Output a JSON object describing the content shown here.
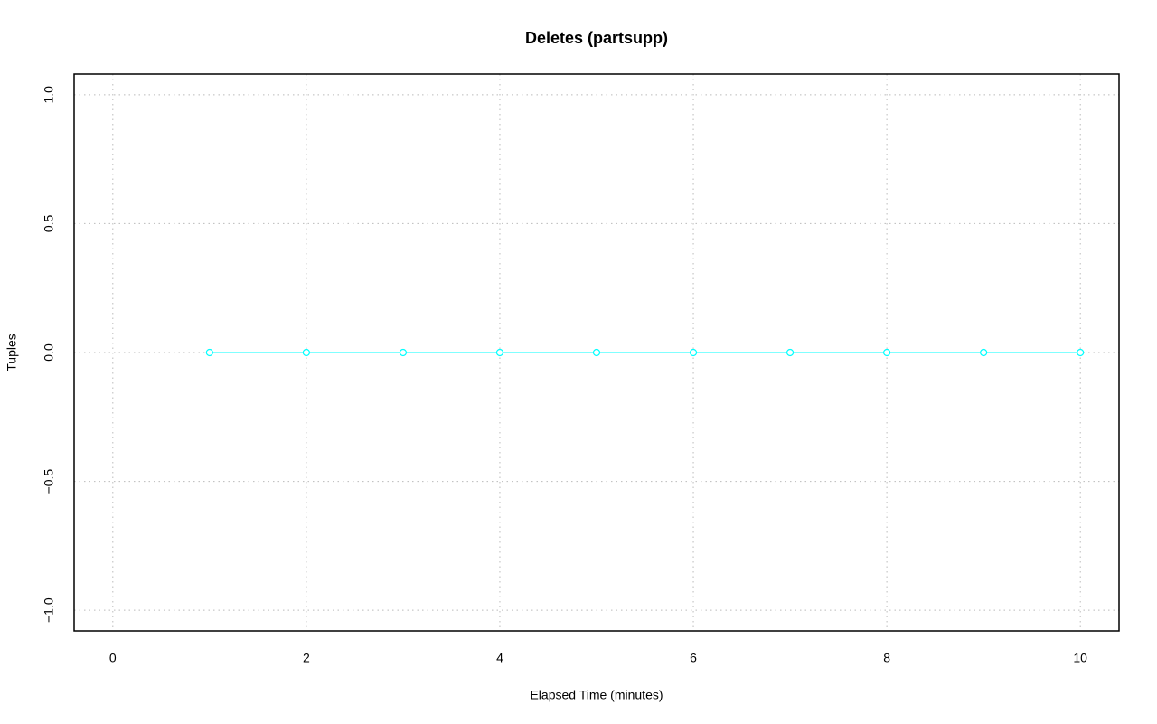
{
  "chart_data": {
    "type": "line",
    "title": "Deletes (partsupp)",
    "x_label": "Elapsed Time (minutes)",
    "y_label": "Tuples",
    "x": [
      1,
      2,
      3,
      4,
      5,
      6,
      7,
      8,
      9,
      10
    ],
    "series": [
      {
        "name": "partsupp",
        "color": "#00ffff",
        "values": [
          0,
          0,
          0,
          0,
          0,
          0,
          0,
          0,
          0,
          0
        ]
      }
    ],
    "xlim": [
      -0.4,
      10.4
    ],
    "xticks": [
      0,
      2,
      4,
      6,
      8,
      10
    ],
    "ylim": [
      -1.08,
      1.08
    ],
    "yticks": [
      {
        "value": -1,
        "label": "−1.0"
      },
      {
        "value": -0.5,
        "label": "−0.5"
      },
      {
        "value": 0,
        "label": "0.0"
      },
      {
        "value": 0.5,
        "label": "0.5"
      },
      {
        "value": 1,
        "label": "1.0"
      }
    ],
    "grid": true,
    "legend": false
  }
}
